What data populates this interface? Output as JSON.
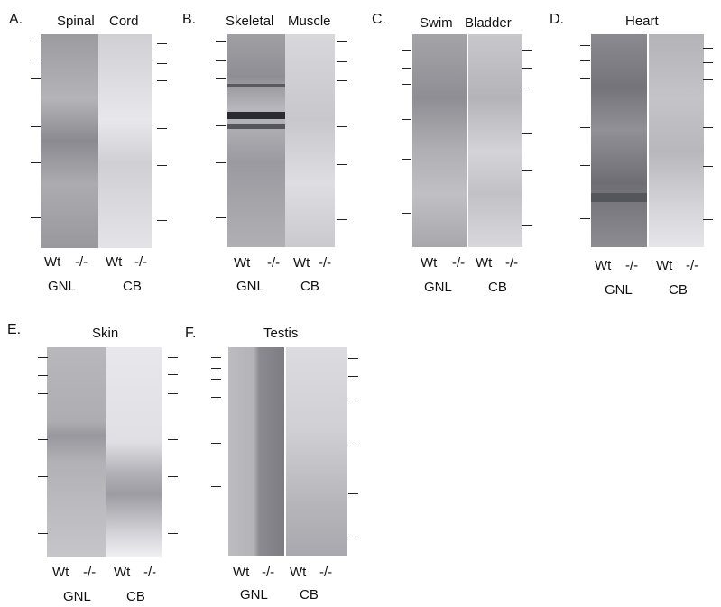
{
  "panels": [
    {
      "letter": "A.",
      "title_left": "Spinal",
      "title_right": "Cord",
      "lane_left": "Wt",
      "lane_right": "-/-",
      "group_left": "GNL",
      "group_right": "CB"
    },
    {
      "letter": "B.",
      "title_left": "Skeletal",
      "title_right": "Muscle",
      "lane_left": "Wt",
      "lane_right": "-/-",
      "group_left": "GNL",
      "group_right": "CB"
    },
    {
      "letter": "C.",
      "title_left": "Swim",
      "title_right": "Bladder",
      "lane_left": "Wt",
      "lane_right": "-/-",
      "group_left": "GNL",
      "group_right": "CB"
    },
    {
      "letter": "D.",
      "title": "Heart",
      "lane_left": "Wt",
      "lane_right": "-/-",
      "group_left": "GNL",
      "group_right": "CB"
    },
    {
      "letter": "E.",
      "title": "Skin",
      "lane_left": "Wt",
      "lane_right": "-/-",
      "group_left": "GNL",
      "group_right": "CB"
    },
    {
      "letter": "F.",
      "title": "Testis",
      "lane_left": "Wt",
      "lane_right": "-/-",
      "group_left": "GNL",
      "group_right": "CB"
    }
  ],
  "colors": {
    "gnl_blot": "#a9a9ad",
    "cb_blot": "#dcdce0",
    "band_dark": "#3a3a40",
    "tick": "#222222"
  }
}
